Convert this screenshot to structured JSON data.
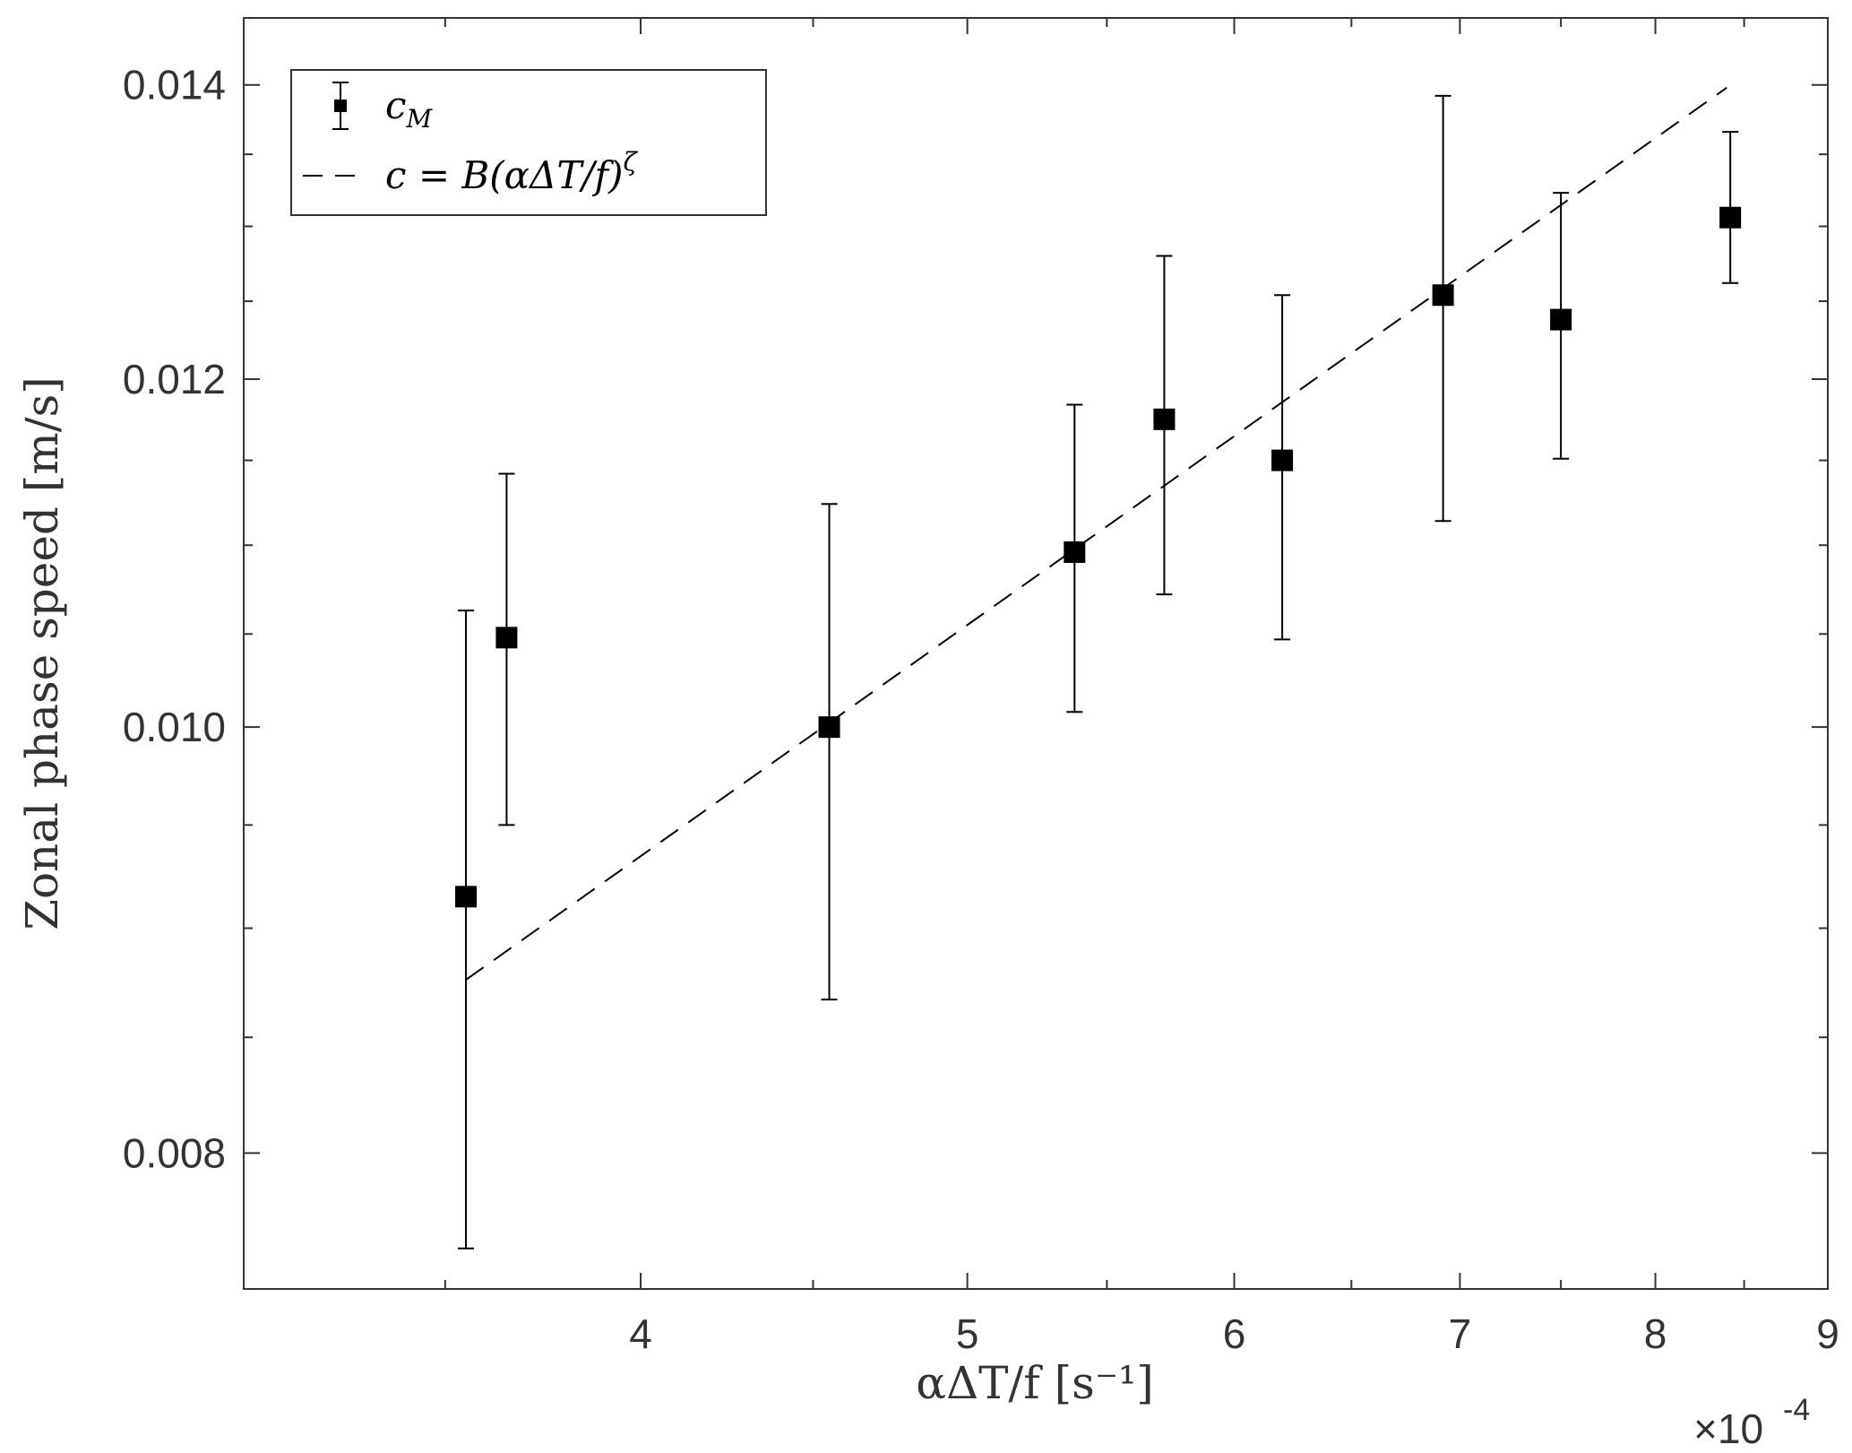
{
  "chart_data": {
    "type": "scatter",
    "xlabel": "αΔT/f [s⁻¹]",
    "ylabel": "Zonal phase speed [m/s]",
    "x_exponent_label": "×10",
    "x_exponent_power": "-4",
    "x_scale": "log",
    "y_scale": "log",
    "xlim": [
      3.05,
      9.0
    ],
    "ylim": [
      0.00745,
      0.0145
    ],
    "x_ticks": [
      4,
      5,
      6,
      7,
      8,
      9
    ],
    "x_tick_labels": [
      "4",
      "5",
      "6",
      "7",
      "8",
      "9"
    ],
    "x_minor_ticks": [
      3.5,
      4.5,
      5.5,
      6.5,
      7.5,
      8.5
    ],
    "y_ticks": [
      0.008,
      0.01,
      0.012,
      0.014
    ],
    "y_tick_labels": [
      "0.008",
      "0.010",
      "0.012",
      "0.014"
    ],
    "y_minor_ticks": [
      0.0085,
      0.009,
      0.0095,
      0.0105,
      0.011,
      0.0115,
      0.0125,
      0.013,
      0.0135
    ],
    "grid": false,
    "legend_position": "top-left",
    "series": [
      {
        "name": "c_M",
        "kind": "errorbar",
        "marker": "square",
        "color": "#000000",
        "x": [
          3.55,
          3.65,
          4.55,
          5.38,
          5.72,
          6.2,
          6.92,
          7.5,
          8.42
        ],
        "y": [
          0.00915,
          0.01048,
          0.01,
          0.01096,
          0.01175,
          0.0115,
          0.01254,
          0.01238,
          0.01306
        ],
        "y_err_upper": [
          0.01063,
          0.01142,
          0.01124,
          0.01184,
          0.0128,
          0.01254,
          0.01392,
          0.01323,
          0.01366
        ],
        "y_err_lower": [
          0.00761,
          0.0095,
          0.00867,
          0.01008,
          0.01072,
          0.01047,
          0.01114,
          0.01151,
          0.01262
        ]
      },
      {
        "name": "c = B(αΔT/f)^ζ",
        "kind": "line",
        "style": "dashed",
        "color": "#000000",
        "x": [
          3.55,
          8.4
        ],
        "y": [
          0.00876,
          0.01398
        ]
      }
    ],
    "legend": [
      {
        "label": "c",
        "sub": "M"
      },
      {
        "label": "c = B(αΔT/f)",
        "sup": "ζ"
      }
    ]
  }
}
